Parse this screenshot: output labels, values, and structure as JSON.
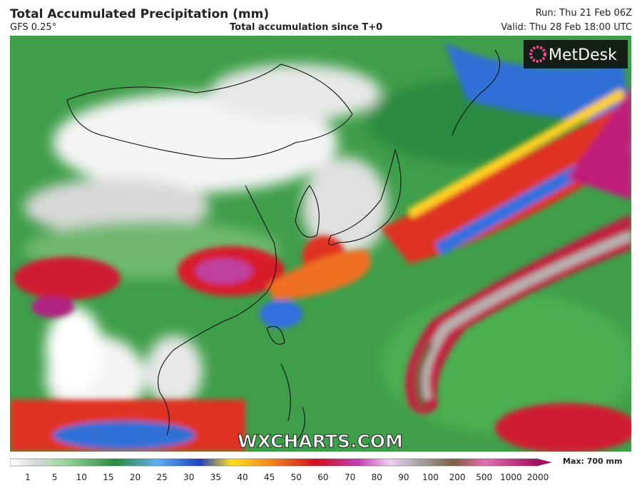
{
  "header": {
    "title": "Total Accumulated Precipitation (mm)",
    "model": "GFS 0.25°",
    "subtitle": "Total accumulation since T+0",
    "run": "Run: Thu 21 Feb 06Z",
    "valid": "Valid: Thu 28 Feb 18:00 UTC"
  },
  "map": {
    "logo": "MetDesk",
    "watermark": "WXCHARTS.COM"
  },
  "legend": {
    "ticks": [
      1,
      5,
      10,
      15,
      20,
      25,
      30,
      35,
      40,
      45,
      50,
      60,
      70,
      80,
      90,
      100,
      200,
      500,
      1000,
      2000
    ],
    "max_label": "Max: 700 mm"
  }
}
